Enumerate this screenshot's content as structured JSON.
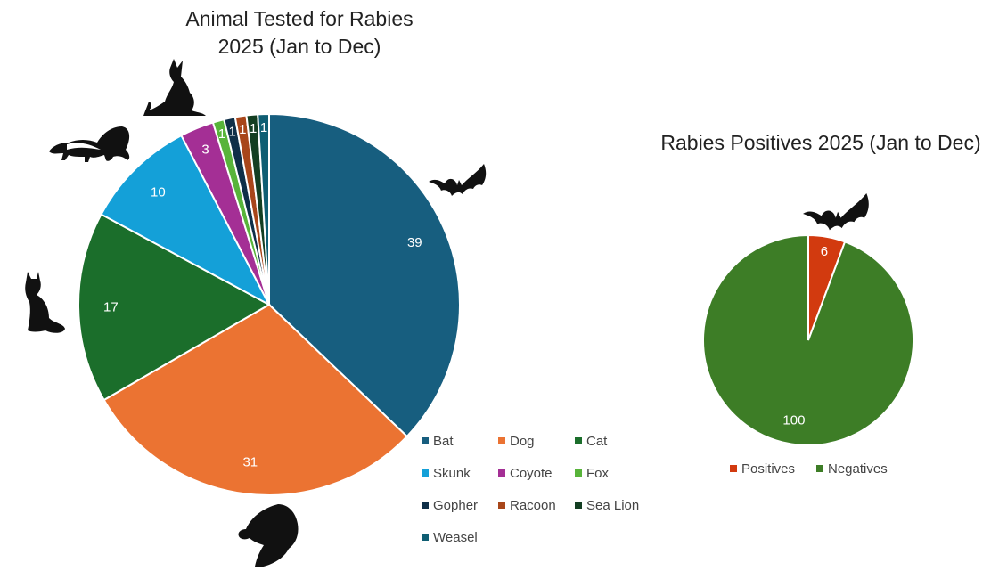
{
  "chart_data": [
    {
      "type": "pie",
      "title": "Animal Tested for Rabies",
      "subtitle": "2025 (Jan to Dec)",
      "categories": [
        "Bat",
        "Dog",
        "Cat",
        "Skunk",
        "Coyote",
        "Fox",
        "Gopher",
        "Racoon",
        "Sea Lion",
        "Weasel"
      ],
      "values": [
        39,
        31,
        17,
        10,
        3,
        1,
        1,
        1,
        1,
        1
      ],
      "colors": [
        "#175e7f",
        "#eb7332",
        "#1b6e2b",
        "#14a0d8",
        "#a42f95",
        "#58b43a",
        "#0f2f48",
        "#a8461a",
        "#133e22",
        "#0f5e73"
      ],
      "data_labels_shown": true,
      "legend_placement": "bottom-right",
      "icons": [
        "bat-icon",
        "dog-icon",
        "cat-icon",
        "skunk-icon",
        "coyote-icon"
      ]
    },
    {
      "type": "pie",
      "title": "Rabies Positives 2025 (Jan to Dec)",
      "categories": [
        "Positives",
        "Negatives"
      ],
      "values": [
        6,
        100
      ],
      "colors": [
        "#d23a0f",
        "#3d7d26"
      ],
      "data_labels_shown": true,
      "legend_placement": "bottom",
      "icons": [
        "bat-icon"
      ]
    }
  ]
}
